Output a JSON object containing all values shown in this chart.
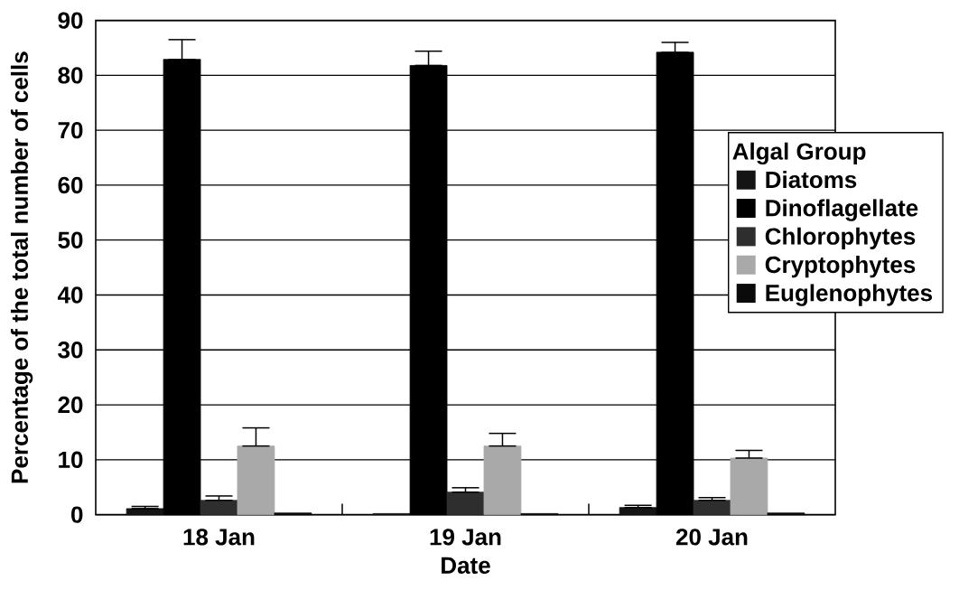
{
  "chart_data": {
    "type": "bar",
    "xlabel": "Date",
    "ylabel": "Percentage of the total number of cells",
    "legend_title": "Algal Group",
    "categories": [
      "18 Jan",
      "19 Jan",
      "20 Jan"
    ],
    "series": [
      {
        "name": "Diatoms",
        "color": "#141414",
        "values": [
          1.1,
          0.2,
          1.3
        ],
        "errors": [
          [
            1.1,
            1.5
          ],
          null,
          [
            1.3,
            1.7
          ]
        ]
      },
      {
        "name": "Dinoflagellate",
        "color": "#000000",
        "values": [
          82.9,
          81.8,
          84.2
        ],
        "errors": [
          [
            82.9,
            86.5
          ],
          [
            81.8,
            84.4
          ],
          [
            84.2,
            86.0
          ]
        ]
      },
      {
        "name": "Chlorophytes",
        "color": "#2e2e2e",
        "values": [
          2.6,
          4.1,
          2.6
        ],
        "errors": [
          [
            2.6,
            3.4
          ],
          [
            4.1,
            4.9
          ],
          [
            2.6,
            3.1
          ]
        ]
      },
      {
        "name": "Cryptophytes",
        "color": "#a9a9a9",
        "values": [
          12.5,
          12.5,
          10.3
        ],
        "errors": [
          [
            12.5,
            15.8
          ],
          [
            12.5,
            14.8
          ],
          [
            10.3,
            11.7
          ]
        ]
      },
      {
        "name": "Euglenophytes",
        "color": "#0a0a0a",
        "values": [
          0.3,
          0.2,
          0.3
        ]
      }
    ],
    "ylim": [
      0,
      90
    ],
    "yticks": [
      0,
      10,
      20,
      30,
      40,
      50,
      60,
      70,
      80,
      90
    ],
    "grid": "y",
    "legend": "right"
  }
}
